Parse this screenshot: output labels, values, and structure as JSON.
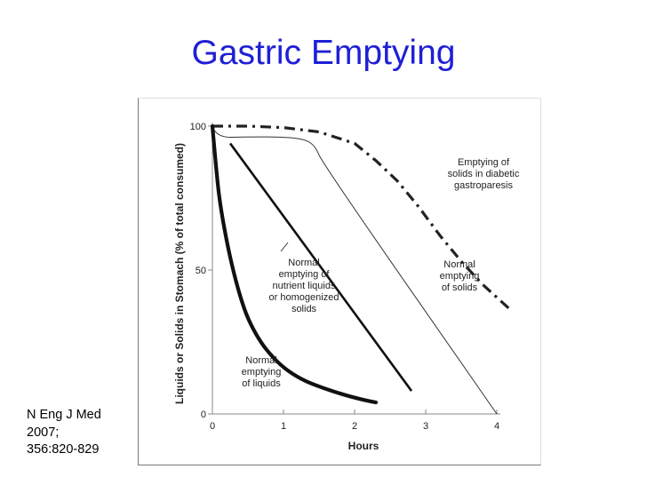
{
  "slide": {
    "title": "Gastric Emptying",
    "citation": [
      "N Eng J Med",
      "2007;",
      "356:820-829"
    ]
  },
  "chart_data": {
    "type": "line",
    "title": "",
    "xlabel": "Hours",
    "ylabel": "Liquids or Solids in Stomach (% of total consumed)",
    "xlim": [
      0,
      4
    ],
    "ylim": [
      0,
      100
    ],
    "x_ticks": [
      "0",
      "1",
      "2",
      "3",
      "4"
    ],
    "y_ticks": [
      "0",
      "50",
      "100"
    ],
    "grid": false,
    "series": [
      {
        "label": [
          "Emptying of",
          "solids in diabetic",
          "gastroparesis"
        ],
        "style": "dashdot",
        "points": [
          [
            0,
            100
          ],
          [
            0.5,
            100
          ],
          [
            1.0,
            99.5
          ],
          [
            1.5,
            98
          ],
          [
            2.0,
            94
          ],
          [
            2.3,
            88
          ],
          [
            2.6,
            81
          ],
          [
            2.9,
            72
          ],
          [
            3.2,
            62
          ],
          [
            3.5,
            53
          ],
          [
            3.8,
            45
          ],
          [
            4.2,
            36
          ]
        ]
      },
      {
        "label": [
          "Normal",
          "emptying",
          "of solids"
        ],
        "style": "thin",
        "points": [
          [
            0,
            100
          ],
          [
            0.05,
            96
          ],
          [
            0.5,
            96.3
          ],
          [
            1.0,
            96.2
          ],
          [
            1.3,
            95.5
          ],
          [
            1.45,
            93
          ],
          [
            1.55,
            87
          ],
          [
            4.0,
            0
          ]
        ]
      },
      {
        "label": [
          "Normal",
          "emptying of",
          "nutrient liquids",
          "or homogenized",
          "solids"
        ],
        "style": "medium",
        "points": [
          [
            0.25,
            94
          ],
          [
            2.8,
            8
          ]
        ]
      },
      {
        "label": [
          "Normal",
          "emptying",
          "of liquids"
        ],
        "style": "thick",
        "points": [
          [
            0,
            100
          ],
          [
            0.05,
            86
          ],
          [
            0.1,
            74
          ],
          [
            0.2,
            60
          ],
          [
            0.3,
            49
          ],
          [
            0.4,
            40
          ],
          [
            0.5,
            33
          ],
          [
            0.65,
            26
          ],
          [
            0.8,
            21
          ],
          [
            1.0,
            16
          ],
          [
            1.25,
            12
          ],
          [
            1.5,
            9.5
          ],
          [
            1.8,
            7
          ],
          [
            2.1,
            5
          ],
          [
            2.3,
            4
          ]
        ]
      }
    ]
  }
}
